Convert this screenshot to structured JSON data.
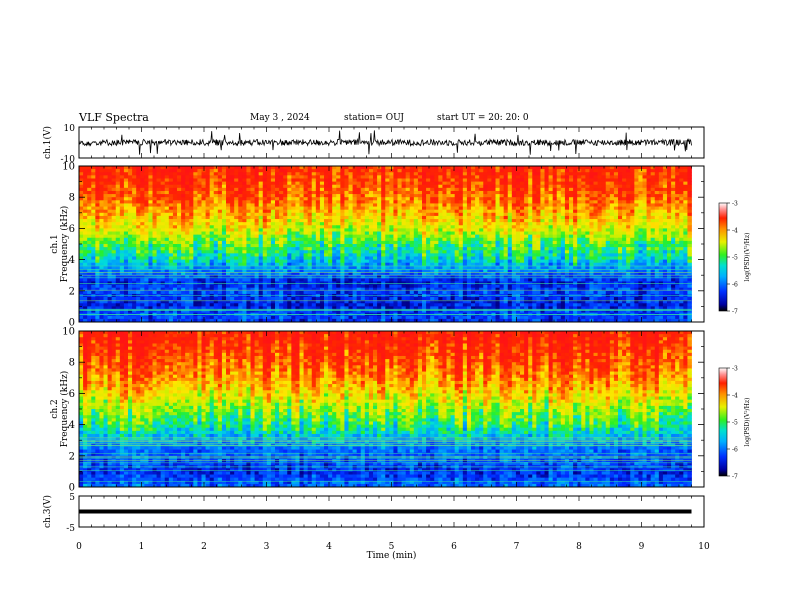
{
  "header": {
    "title": "VLF Spectra",
    "date": "May 3 , 2024",
    "station": "station= OUJ",
    "start": "start UT = 20: 20: 0"
  },
  "colorbar": {
    "ticks": [
      "-3",
      "-4",
      "-5",
      "-6",
      "-7"
    ],
    "label": "log(PSD)(V²/Hz)"
  },
  "chart_data": [
    {
      "type": "line",
      "panel": "ch1-waveform",
      "ylabel": "ch.1(V)",
      "ylim": [
        -10,
        10
      ],
      "y_ticks": [
        "10",
        "-10"
      ],
      "xlim": [
        0,
        10
      ],
      "baseline": 0,
      "amplitude_typical": 2,
      "spike_peak": 8
    },
    {
      "type": "heatmap",
      "panel": "ch1-spectrogram",
      "ylabel_line1": "ch.1",
      "ylabel_line2": "Frequency (kHz)",
      "ylim": [
        0,
        10
      ],
      "y_ticks": [
        "0",
        "2",
        "4",
        "6",
        "8",
        "10"
      ],
      "xlim": [
        0,
        10
      ],
      "data_end_min": 9.8,
      "zlim": [
        -7,
        -3
      ],
      "profile": [
        {
          "f": 0,
          "z": -6.5
        },
        {
          "f": 0.5,
          "z": -6.4
        },
        {
          "f": 1,
          "z": -6.7
        },
        {
          "f": 1.5,
          "z": -6.6
        },
        {
          "f": 2,
          "z": -6.4
        },
        {
          "f": 2.5,
          "z": -6.7
        },
        {
          "f": 3,
          "z": -6.3
        },
        {
          "f": 3.5,
          "z": -6.0
        },
        {
          "f": 4,
          "z": -5.6
        },
        {
          "f": 5,
          "z": -5.2
        },
        {
          "f": 6,
          "z": -4.6
        },
        {
          "f": 7,
          "z": -4.2
        },
        {
          "f": 8,
          "z": -3.8
        },
        {
          "f": 9,
          "z": -3.6
        },
        {
          "f": 10,
          "z": -3.4
        }
      ]
    },
    {
      "type": "heatmap",
      "panel": "ch2-spectrogram",
      "ylabel_line1": "ch.2",
      "ylabel_line2": "Frequency (kHz)",
      "ylim": [
        0,
        10
      ],
      "y_ticks": [
        "0",
        "2",
        "4",
        "6",
        "8",
        "10"
      ],
      "xlim": [
        0,
        10
      ],
      "data_end_min": 9.8,
      "zlim": [
        -7,
        -3
      ],
      "profile": [
        {
          "f": 0,
          "z": -6.2
        },
        {
          "f": 0.5,
          "z": -6.4
        },
        {
          "f": 1,
          "z": -6.6
        },
        {
          "f": 1.5,
          "z": -6.4
        },
        {
          "f": 2,
          "z": -6.3
        },
        {
          "f": 2.5,
          "z": -6.2
        },
        {
          "f": 3,
          "z": -5.9
        },
        {
          "f": 3.5,
          "z": -5.6
        },
        {
          "f": 4,
          "z": -5.3
        },
        {
          "f": 5,
          "z": -4.9
        },
        {
          "f": 6,
          "z": -4.4
        },
        {
          "f": 7,
          "z": -4.0
        },
        {
          "f": 8,
          "z": -3.7
        },
        {
          "f": 9,
          "z": -3.5
        },
        {
          "f": 10,
          "z": -3.3
        }
      ]
    },
    {
      "type": "line",
      "panel": "ch3-waveform",
      "ylabel": "ch.3(V)",
      "ylim": [
        -5,
        5
      ],
      "y_ticks": [
        "5",
        "-5"
      ],
      "xlim": [
        0,
        10
      ],
      "data_end_min": 9.8,
      "baseline": 0,
      "xlabel": "Time (min)",
      "x_ticks": [
        "0",
        "1",
        "2",
        "3",
        "4",
        "5",
        "6",
        "7",
        "8",
        "9",
        "10"
      ]
    }
  ]
}
